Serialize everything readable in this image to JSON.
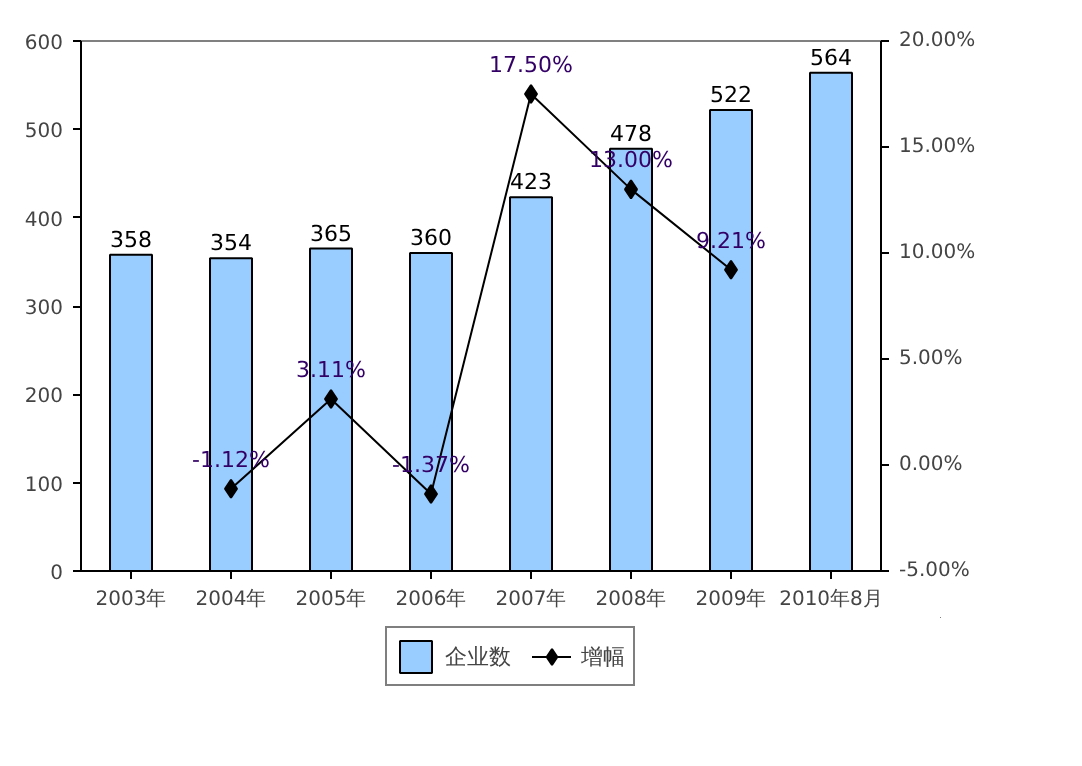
{
  "chart_data": {
    "type": "bar",
    "categories": [
      "2003年",
      "2004年",
      "2005年",
      "2006年",
      "2007年",
      "2008年",
      "2009年",
      "2010年8月"
    ],
    "series": [
      {
        "name": "企业数",
        "color": "#99ccff",
        "values": [
          358,
          354,
          365,
          360,
          423,
          478,
          522,
          564
        ],
        "value_labels": [
          "358",
          "354",
          "365",
          "360",
          "423",
          "478",
          "522",
          "564"
        ]
      },
      {
        "name": "增幅",
        "type": "line",
        "axis": "y2",
        "color": "#000000",
        "marker": "diamond",
        "values": [
          null,
          -1.12,
          3.11,
          -1.37,
          17.5,
          13.0,
          9.21,
          null
        ],
        "value_labels": [
          null,
          "-1.12%",
          "3.11%",
          "-1.37%",
          "17.50%",
          "13.00%",
          "9.21%",
          null
        ]
      }
    ],
    "ylim": [
      0,
      600
    ],
    "yticks": [
      0,
      100,
      200,
      300,
      400,
      500,
      600
    ],
    "y2lim": [
      -5,
      20
    ],
    "y2ticks": [
      {
        "value": -5,
        "label": "-5.00%"
      },
      {
        "value": 0,
        "label": "0.00%"
      },
      {
        "value": 5,
        "label": "5.00%"
      },
      {
        "value": 10,
        "label": "10.00%"
      },
      {
        "value": 15,
        "label": "15.00%"
      },
      {
        "value": 20,
        "label": "20.00%"
      }
    ],
    "grid": false,
    "legend": "bottom"
  }
}
